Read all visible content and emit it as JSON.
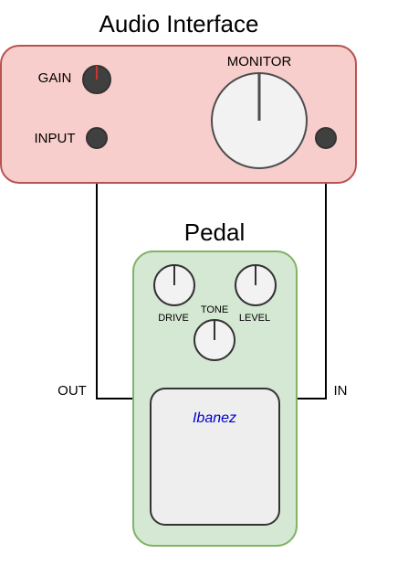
{
  "interface": {
    "title": "Audio Interface",
    "gain_label": "GAIN",
    "monitor_label": "MONITOR",
    "input_label": "INPUT",
    "fill": "#f8cecc",
    "stroke": "#b85450"
  },
  "pedal": {
    "title": "Pedal",
    "drive_label": "DRIVE",
    "tone_label": "TONE",
    "level_label": "LEVEL",
    "brand": "Ibanez",
    "out_label": "OUT",
    "in_label": "IN",
    "fill": "#d5e8d4",
    "stroke": "#82b366",
    "brand_color": "#0000cc"
  },
  "colors": {
    "jack": "#404040",
    "knob": "#f2f2f2",
    "footswitch": "#eeeeee",
    "gain_indicator": "#cc3333",
    "cable": "#000000"
  }
}
